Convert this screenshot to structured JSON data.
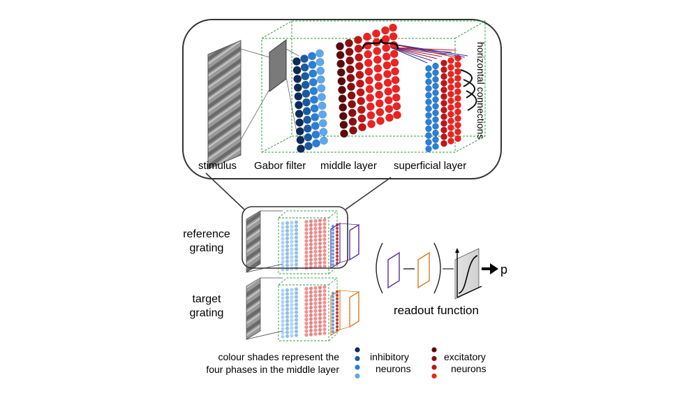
{
  "zoom_labels": {
    "stimulus": "stimulus",
    "gabor_filter": "Gabor filter",
    "middle_layer": "middle layer",
    "superficial_layer": "superficial layer",
    "horizontal_connections": "horizontal connections"
  },
  "model_labels": {
    "reference_line1": "reference",
    "reference_line2": "grating",
    "target_line1": "target",
    "target_line2": "grating",
    "readout_function": "readout function",
    "output": "p"
  },
  "legend": {
    "caption_line1": "colour shades represent the",
    "caption_line2": "four phases in the middle layer",
    "inhibitory_line1": "inhibitory",
    "inhibitory_line2": "neurons",
    "excitatory_line1": "excitatory",
    "excitatory_line2": "neurons"
  },
  "colors": {
    "inhibitory_shades": [
      "#0d2b57",
      "#1a5aa0",
      "#2a7fd6",
      "#5aa8ee"
    ],
    "excitatory_shades": [
      "#5a0a0a",
      "#8a0f0f",
      "#c01515",
      "#ee2222"
    ],
    "network_box": "#2e9b3b",
    "reference_readout": "#5b2a9b",
    "target_readout": "#d97b1e"
  }
}
